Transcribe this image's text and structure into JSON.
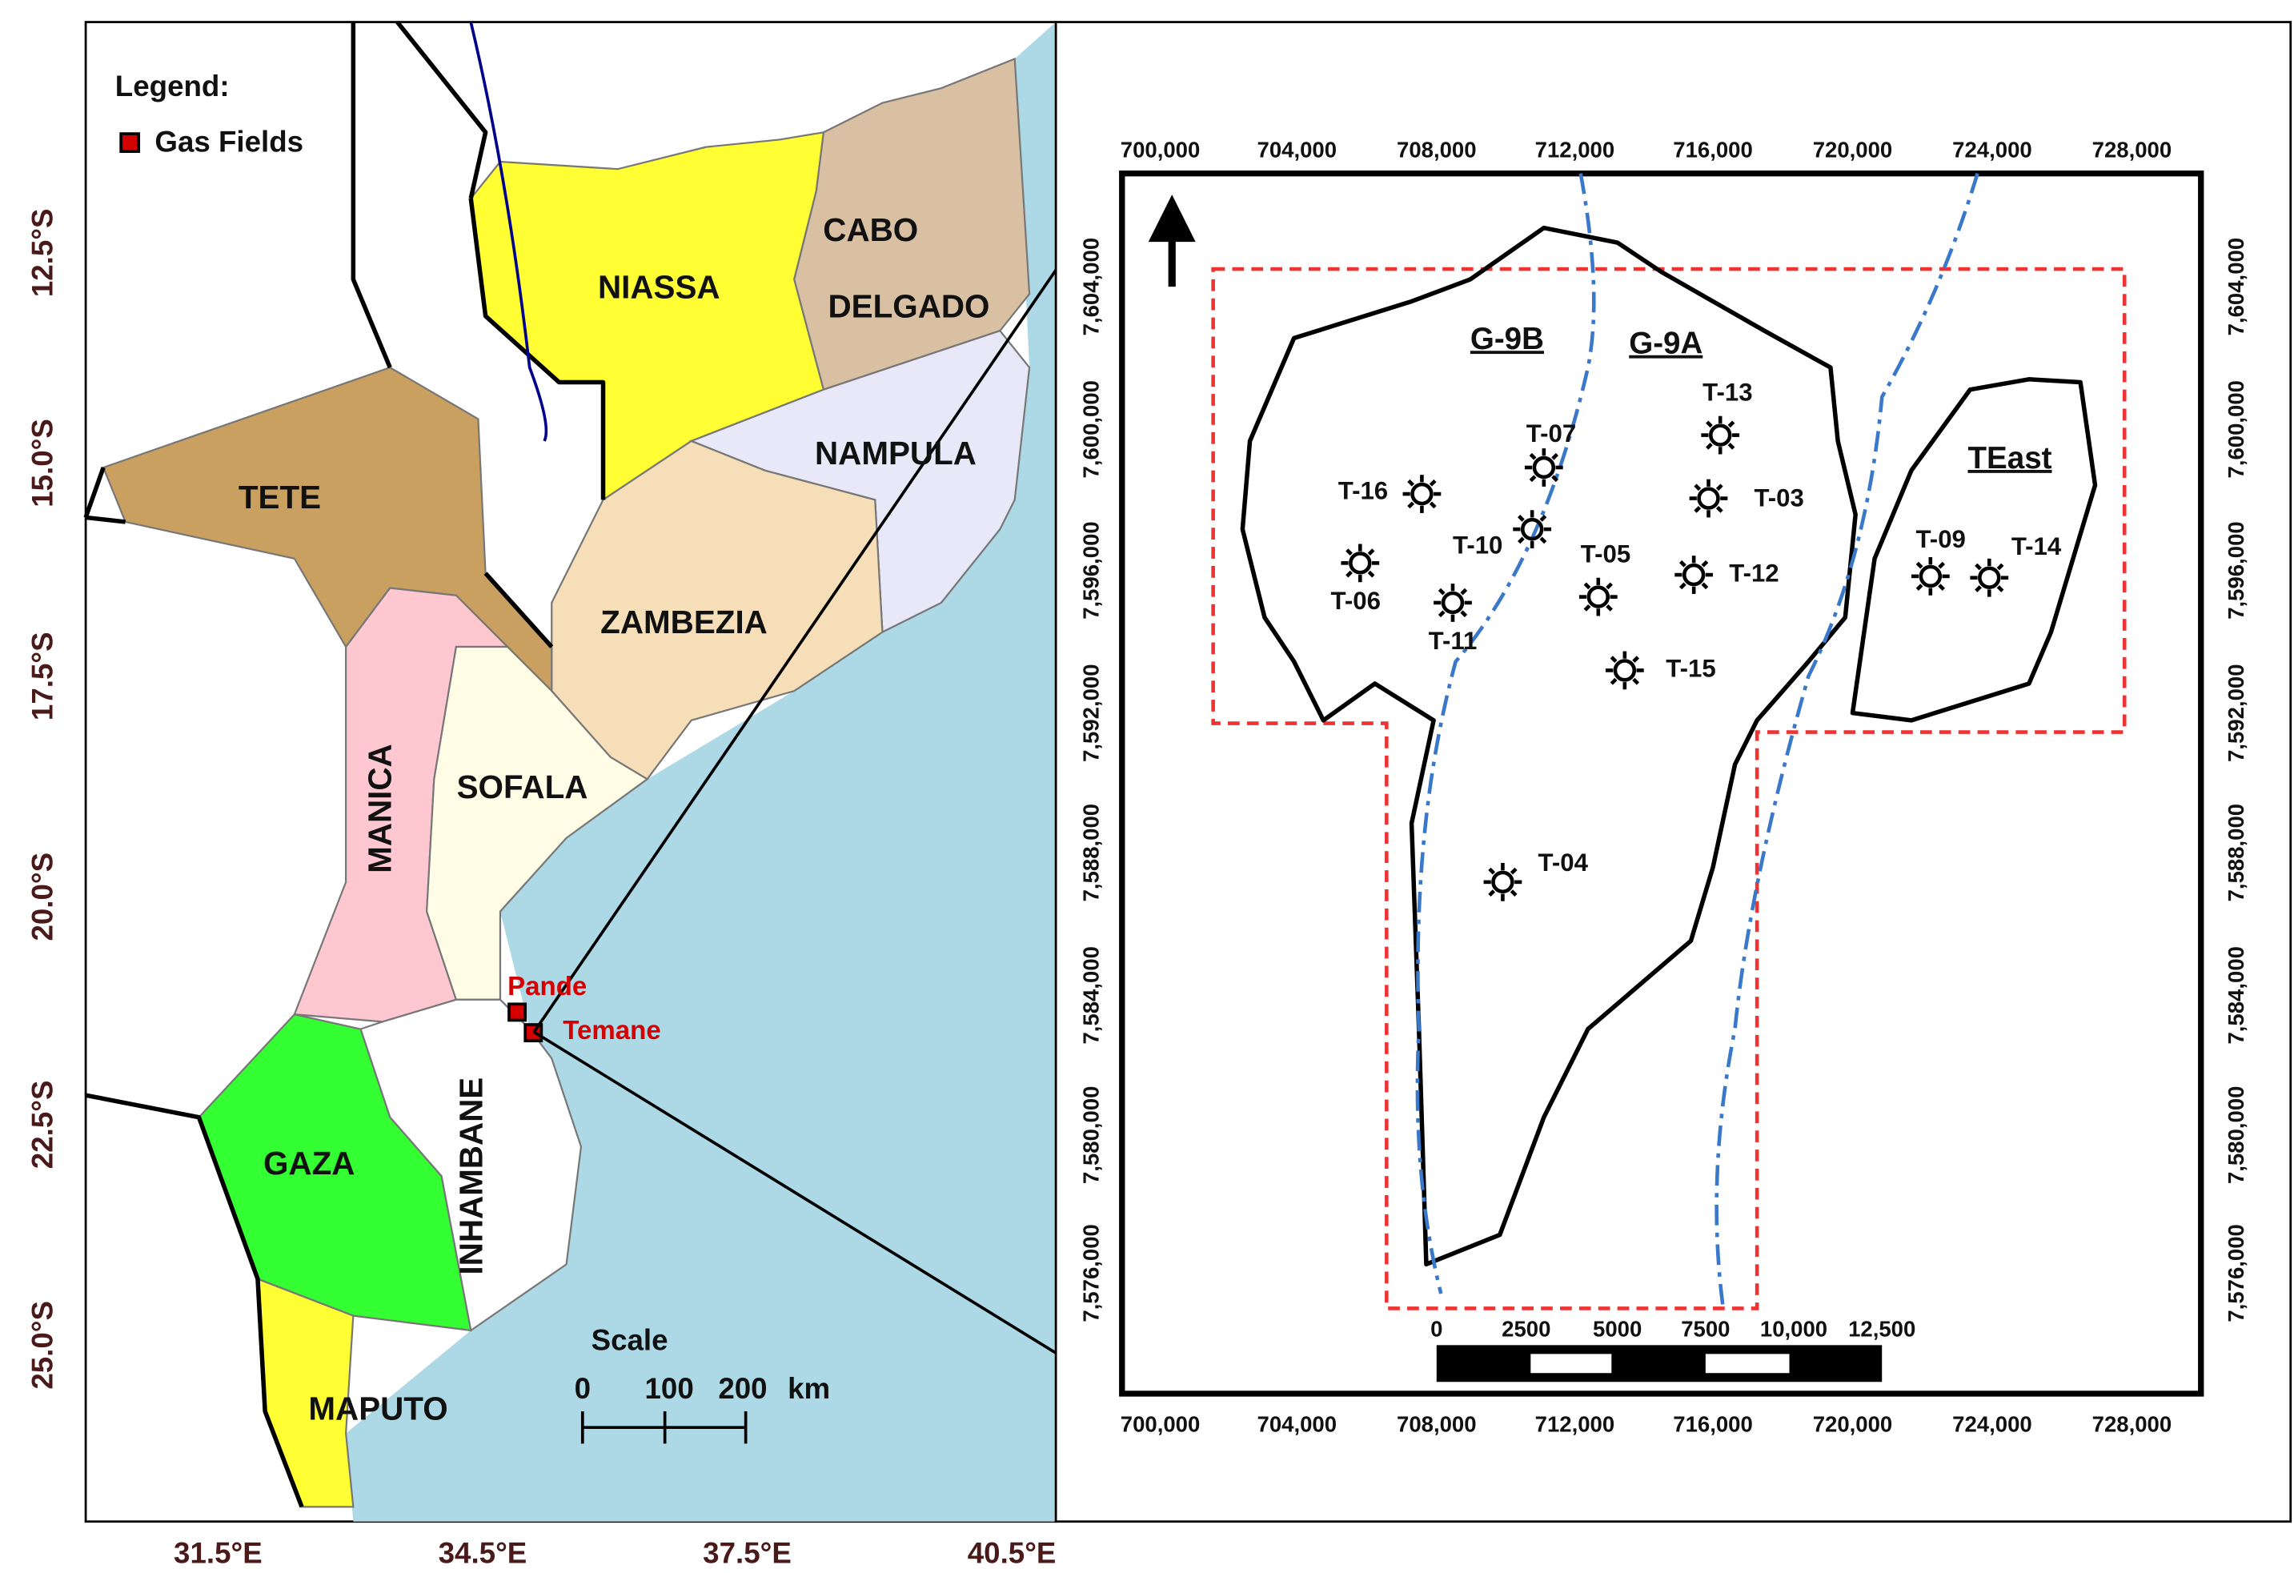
{
  "left_map": {
    "legend": {
      "title": "Legend:",
      "item": "Gas Fields"
    },
    "provinces": [
      "NIASSA",
      "CABO",
      "DELGADO",
      "NAMPULA",
      "TETE",
      "ZAMBEZIA",
      "SOFALA",
      "MANICA",
      "INHAMBANE",
      "GAZA",
      "MAPUTO"
    ],
    "gas_fields": [
      "Pande",
      "Temane"
    ],
    "scale": {
      "title": "Scale",
      "ticks": [
        "0",
        "100",
        "200"
      ],
      "unit": "km"
    },
    "latitude_labels": [
      "12.5°S",
      "15.0°S",
      "17.5°S",
      "20.0°S",
      "22.5°S",
      "25.0°S"
    ],
    "longitude_labels": [
      "31.5°E",
      "34.5°E",
      "37.5°E",
      "40.5°E"
    ]
  },
  "right_map": {
    "x_ticks_top": [
      "700,000",
      "704,000",
      "708,000",
      "712,000",
      "716,000",
      "720,000",
      "724,000",
      "728,000"
    ],
    "x_ticks_bottom": [
      "700,000",
      "704,000",
      "708,000",
      "712,000",
      "716,000",
      "720,000",
      "724,000",
      "728,000"
    ],
    "y_ticks_left": [
      "7,604,000",
      "7,600,000",
      "7,596,000",
      "7,592,000",
      "7,588,000",
      "7,584,000",
      "7,580,000",
      "7,576,000"
    ],
    "y_ticks_right": [
      "7,604,000",
      "7,600,000",
      "7,596,000",
      "7,592,000",
      "7,588,000",
      "7,584,000",
      "7,580,000",
      "7,576,000"
    ],
    "blocks": [
      "G-9B",
      "G-9A",
      "TEast"
    ],
    "wells": [
      "T-13",
      "T-07",
      "T-16",
      "T-03",
      "T-10",
      "T-05",
      "T-06",
      "T-12",
      "T-11",
      "T-15",
      "T-04",
      "T-09",
      "T-14"
    ],
    "scale_bar": [
      "0",
      "2500",
      "5000",
      "7500",
      "10,000",
      "12,500"
    ]
  }
}
